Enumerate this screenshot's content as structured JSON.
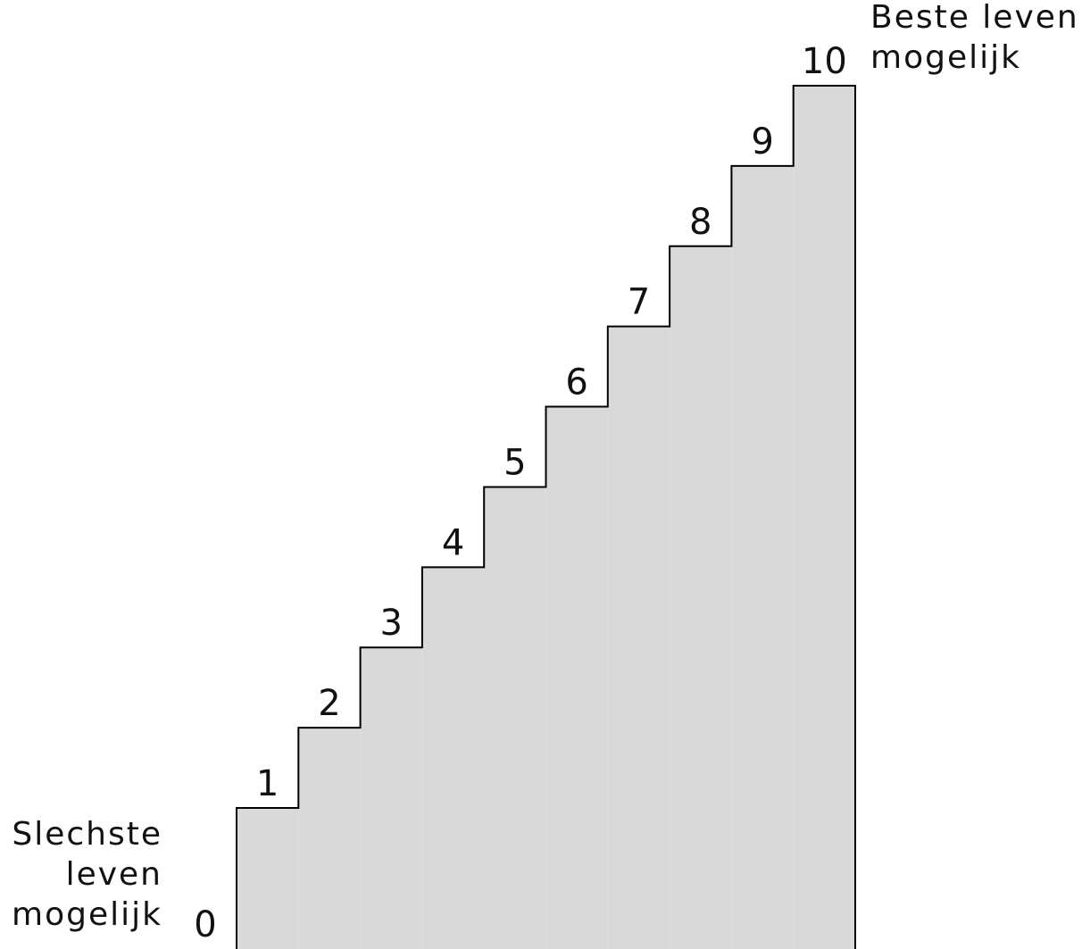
{
  "ladder": {
    "steps": [
      "0",
      "1",
      "2",
      "3",
      "4",
      "5",
      "6",
      "7",
      "8",
      "9",
      "10"
    ],
    "fill_color": "#d9d9d9",
    "outline_color": "#000000"
  },
  "anchors": {
    "worst": {
      "lines": [
        "Slechste",
        "leven",
        "mogelijk"
      ]
    },
    "best": {
      "lines": [
        "Beste leven",
        "mogelijk"
      ]
    }
  }
}
